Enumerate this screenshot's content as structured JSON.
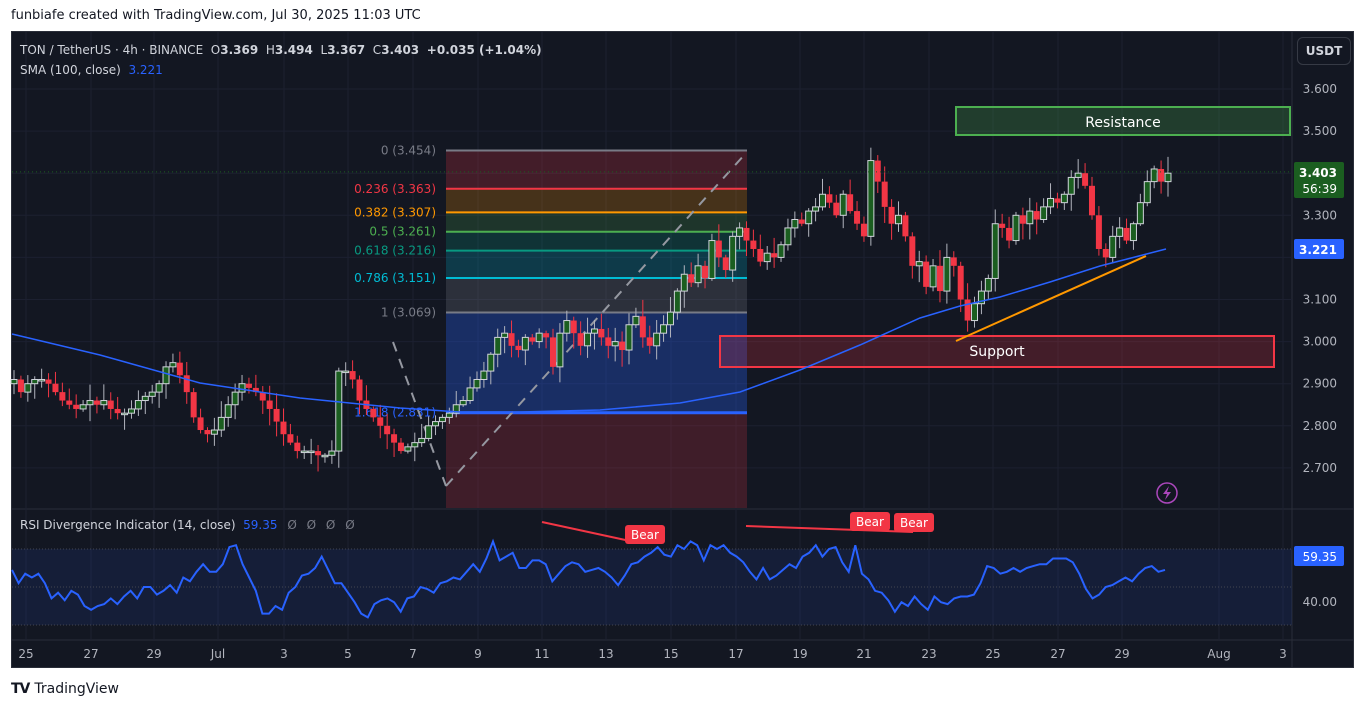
{
  "caption": "funbiafe created with TradingView.com, Jul 30, 2025 11:03 UTC",
  "header": {
    "symbol": "TON / TetherUS · 4h · BINANCE",
    "open_label": "O",
    "open": "3.369",
    "high_label": "H",
    "high": "3.494",
    "low_label": "L",
    "low": "3.367",
    "close_label": "C",
    "close": "3.403",
    "change": "+0.035 (+1.04%)",
    "sma_label": "SMA (100, close)",
    "sma_value": "3.221",
    "currency_button": "USDT"
  },
  "price_axis": {
    "ticks": [
      "3.600",
      "3.500",
      "3.300",
      "3.200",
      "3.100",
      "3.000",
      "2.900",
      "2.800",
      "2.700"
    ],
    "last_price": "3.403",
    "countdown": "56:39",
    "sma_tag": "3.221",
    "colors": {
      "last_price_bg": "#1b5e20",
      "sma_tag_bg": "#2962ff"
    }
  },
  "fib": {
    "levels": [
      {
        "ratio": "0",
        "price": "3.454",
        "label": "0 (3.454)",
        "color": "#787b86"
      },
      {
        "ratio": "0.236",
        "price": "3.363",
        "label": "0.236 (3.363)",
        "color": "#f23645"
      },
      {
        "ratio": "0.382",
        "price": "3.307",
        "label": "0.382 (3.307)",
        "color": "#ff9800"
      },
      {
        "ratio": "0.5",
        "price": "3.261",
        "label": "0.5 (3.261)",
        "color": "#4caf50"
      },
      {
        "ratio": "0.618",
        "price": "3.216",
        "label": "0.618 (3.216)",
        "color": "#089981"
      },
      {
        "ratio": "0.786",
        "price": "3.151",
        "label": "0.786 (3.151)",
        "color": "#00bcd4"
      },
      {
        "ratio": "1",
        "price": "3.069",
        "label": "1 (3.069)",
        "color": "#787b86"
      },
      {
        "ratio": "1.618",
        "price": "2.831",
        "label": "1.618 (2.831)",
        "color": "#2962ff"
      }
    ]
  },
  "zones": {
    "resistance_label": "Resistance",
    "support_label": "Support"
  },
  "rsi": {
    "title": "RSI Divergence Indicator (14, close)",
    "value": "59.35",
    "nulls": [
      "Ø",
      "Ø",
      "Ø",
      "Ø"
    ],
    "axis_label": "40.00",
    "signals": [
      "Bear",
      "Bear",
      "Bear"
    ]
  },
  "time_axis": {
    "ticks": [
      "25",
      "27",
      "29",
      "Jul",
      "3",
      "5",
      "7",
      "9",
      "11",
      "13",
      "15",
      "17",
      "19",
      "21",
      "23",
      "25",
      "27",
      "29",
      "Aug",
      "3"
    ]
  },
  "footer": {
    "brand": "TradingView",
    "logo": "TV"
  },
  "chart_data": {
    "type": "candlestick",
    "title": "TON / TetherUS · 4h · BINANCE",
    "xlabel": "",
    "ylabel": "USDT",
    "ylim": [
      2.62,
      3.65
    ],
    "x_ticks": [
      "25",
      "27",
      "29",
      "Jul",
      "3",
      "5",
      "7",
      "9",
      "11",
      "13",
      "15",
      "17",
      "19",
      "21",
      "23",
      "25",
      "27",
      "29",
      "Aug",
      "3"
    ],
    "series": [
      {
        "name": "TONUSDT close (approx, 4h)",
        "values": [
          2.91,
          2.88,
          2.9,
          2.91,
          2.91,
          2.9,
          2.88,
          2.86,
          2.85,
          2.84,
          2.85,
          2.86,
          2.85,
          2.86,
          2.84,
          2.83,
          2.83,
          2.84,
          2.86,
          2.87,
          2.88,
          2.9,
          2.94,
          2.95,
          2.92,
          2.88,
          2.82,
          2.79,
          2.78,
          2.79,
          2.82,
          2.85,
          2.88,
          2.9,
          2.89,
          2.88,
          2.86,
          2.84,
          2.81,
          2.78,
          2.76,
          2.74,
          2.74,
          2.74,
          2.73,
          2.73,
          2.74,
          2.93,
          2.93,
          2.91,
          2.86,
          2.84,
          2.82,
          2.8,
          2.78,
          2.76,
          2.74,
          2.75,
          2.76,
          2.77,
          2.8,
          2.81,
          2.82,
          2.83,
          2.85,
          2.86,
          2.89,
          2.91,
          2.93,
          2.97,
          3.01,
          3.02,
          2.99,
          2.98,
          3.01,
          3.0,
          3.02,
          3.01,
          2.94,
          3.02,
          3.05,
          3.02,
          2.99,
          3.02,
          3.03,
          3.01,
          2.99,
          3.0,
          2.98,
          3.04,
          3.06,
          3.01,
          2.99,
          3.02,
          3.04,
          3.07,
          3.12,
          3.16,
          3.14,
          3.18,
          3.15,
          3.24,
          3.2,
          3.17,
          3.25,
          3.27,
          3.24,
          3.22,
          3.19,
          3.21,
          3.2,
          3.23,
          3.27,
          3.29,
          3.28,
          3.31,
          3.32,
          3.35,
          3.33,
          3.3,
          3.35,
          3.31,
          3.28,
          3.25,
          3.43,
          3.38,
          3.32,
          3.28,
          3.3,
          3.25,
          3.18,
          3.19,
          3.13,
          3.18,
          3.12,
          3.2,
          3.18,
          3.1,
          3.05,
          3.09,
          3.12,
          3.15,
          3.28,
          3.27,
          3.24,
          3.3,
          3.28,
          3.31,
          3.29,
          3.32,
          3.34,
          3.33,
          3.35,
          3.39,
          3.4,
          3.37,
          3.3,
          3.22,
          3.2,
          3.25,
          3.27,
          3.24,
          3.28,
          3.33,
          3.38,
          3.41,
          3.38,
          3.4
        ]
      },
      {
        "name": "SMA (100, close)",
        "last": 3.221
      },
      {
        "name": "RSI (14)",
        "last": 59.35
      }
    ],
    "annotations": [
      {
        "type": "zone",
        "label": "Resistance",
        "from": 3.495,
        "to": 3.565
      },
      {
        "type": "zone",
        "label": "Support",
        "from": 2.945,
        "to": 3.02
      },
      {
        "type": "fib_retracement",
        "levels": {
          "0": 3.454,
          "0.236": 3.363,
          "0.382": 3.307,
          "0.5": 3.261,
          "0.618": 3.216,
          "0.786": 3.151,
          "1": 3.069,
          "1.618": 2.831
        }
      },
      {
        "type": "trendline",
        "color": "#ff9800",
        "desc": "rising support from ~3.00 (Jul 24) to ~3.20 (Jul 29)"
      },
      {
        "type": "rsi_signal",
        "label": "Bear",
        "count": 3
      }
    ]
  }
}
